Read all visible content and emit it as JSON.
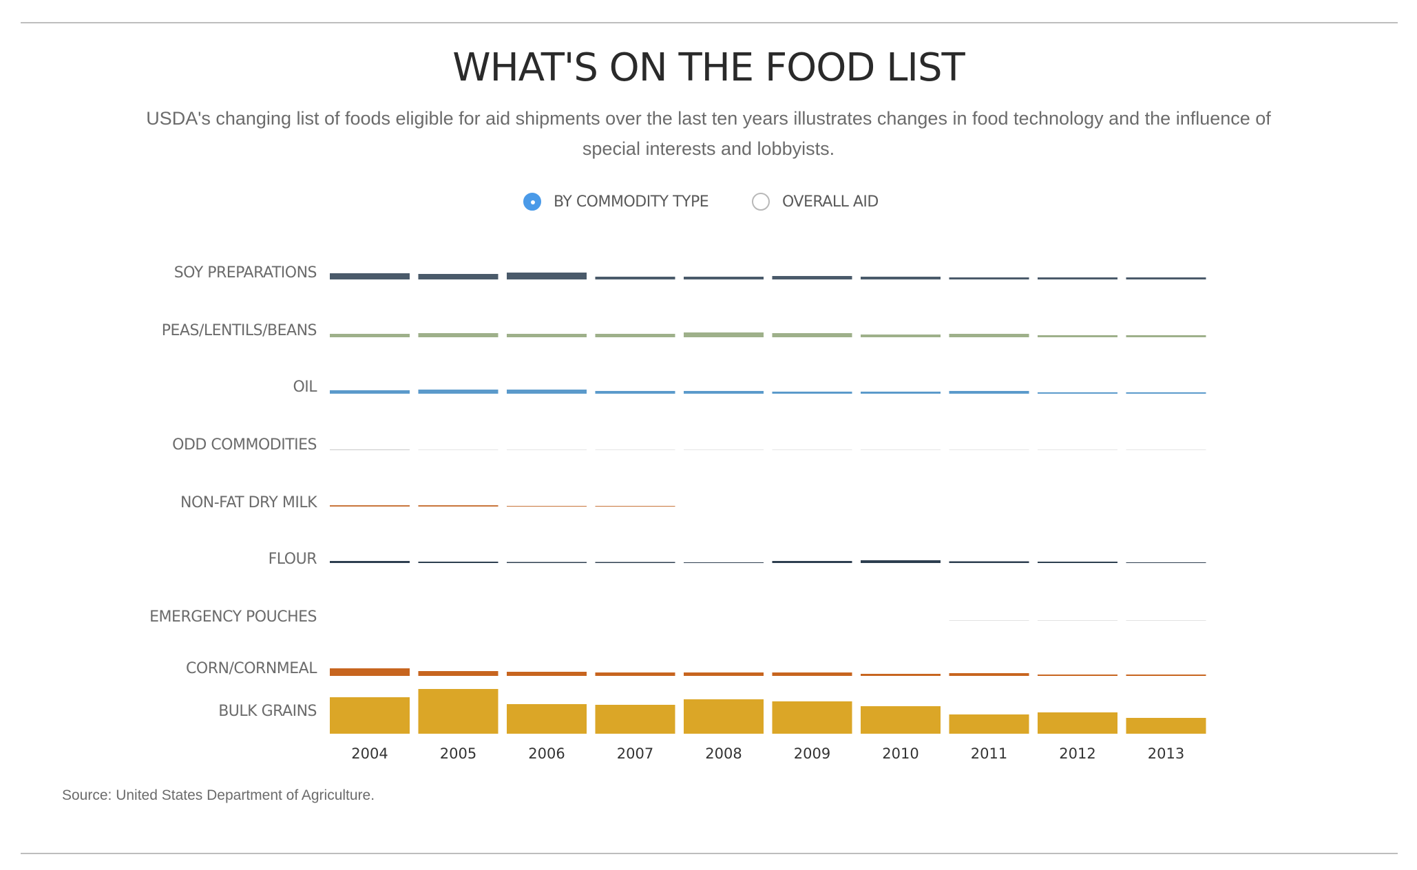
{
  "header": {
    "title": "WHAT'S ON THE FOOD LIST",
    "subtitle": "USDA's changing list of foods eligible for aid shipments over the last ten years illustrates changes in food technology and the influence of special interests and lobbyists."
  },
  "toggle": {
    "options": [
      {
        "label": "BY COMMODITY TYPE",
        "selected": true
      },
      {
        "label": "OVERALL AID",
        "selected": false
      }
    ],
    "accent_color": "#4a9ae8"
  },
  "chart_data": {
    "type": "bar",
    "layout": "small-multiples rows by commodity",
    "categories": [
      "2004",
      "2005",
      "2006",
      "2007",
      "2008",
      "2009",
      "2010",
      "2011",
      "2012",
      "2013"
    ],
    "series": [
      {
        "name": "SOY PREPARATIONS",
        "color": "#4a5a6a",
        "values": [
          9,
          8,
          10,
          4,
          4,
          5,
          4,
          3,
          3,
          3
        ]
      },
      {
        "name": "PEAS/LENTILS/BEANS",
        "color": "#9eb08a",
        "values": [
          5,
          6,
          5,
          5,
          7,
          6,
          4,
          5,
          3,
          3
        ]
      },
      {
        "name": "OIL",
        "color": "#5b9acb",
        "values": [
          5,
          6,
          6,
          4,
          4,
          3,
          3,
          4,
          2,
          2
        ]
      },
      {
        "name": "ODD COMMODITIES",
        "color": "#c9c9c9",
        "values": [
          1,
          0.5,
          0.5,
          0.5,
          0.5,
          0.5,
          0.5,
          0.5,
          0.5,
          0.5
        ]
      },
      {
        "name": "NON-FAT DRY MILK",
        "color": "#c8743a",
        "values": [
          2,
          2,
          1,
          1,
          0,
          0,
          0,
          0,
          0,
          0
        ]
      },
      {
        "name": "FLOUR",
        "color": "#2d3e4f",
        "values": [
          3,
          2,
          1.5,
          1.5,
          1,
          3,
          4,
          2.5,
          2,
          1
        ]
      },
      {
        "name": "EMERGENCY POUCHES",
        "color": "#e2e2e2",
        "values": [
          0,
          0,
          0,
          0,
          0,
          0,
          0,
          1,
          1,
          1
        ]
      },
      {
        "name": "CORN/CORNMEAL",
        "color": "#c7651f",
        "values": [
          11,
          7,
          6,
          5,
          5,
          5,
          3,
          4,
          2,
          2
        ]
      },
      {
        "name": "BULK GRAINS",
        "color": "#dba627",
        "values": [
          53,
          65,
          43,
          42,
          50,
          47,
          40,
          28,
          31,
          23
        ]
      }
    ],
    "grid": false,
    "legend": "none"
  },
  "footer": {
    "source": "Source: United States Department of Agriculture."
  }
}
